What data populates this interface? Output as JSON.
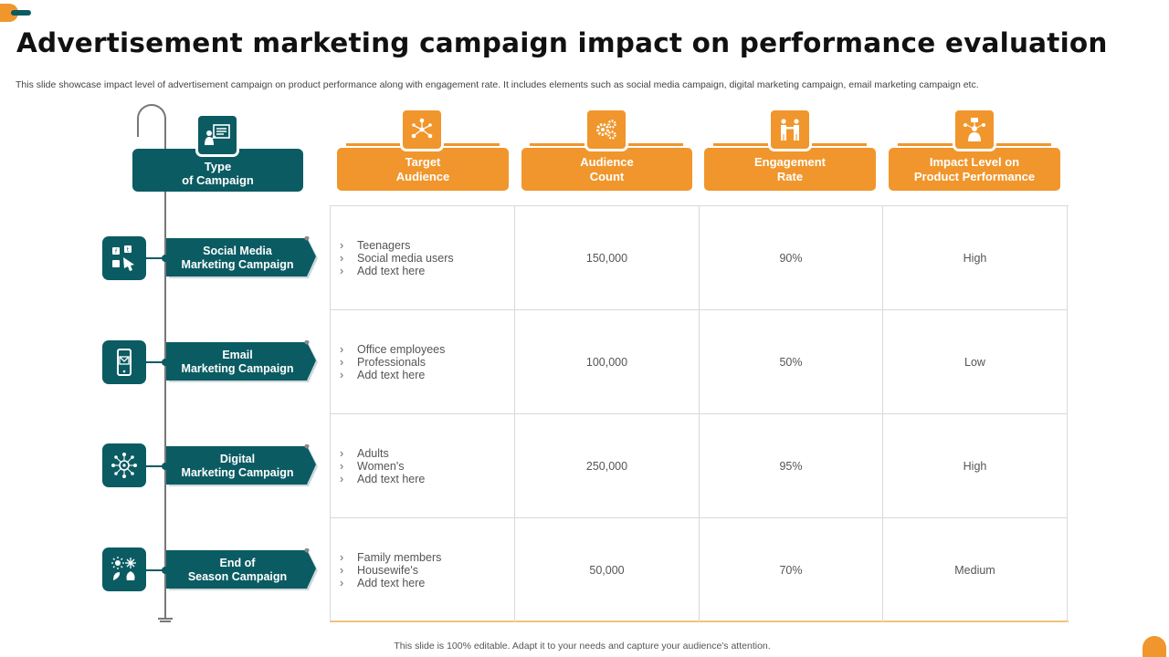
{
  "title": "Advertisement marketing campaign impact on performance evaluation",
  "subtitle": "This slide showcase impact level of advertisement campaign on product performance along with engagement rate. It includes elements such as social media campaign, digital marketing campaign, email marketing campaign etc.",
  "footer": "This slide is 100% editable. Adapt it to your needs and capture your audience's attention.",
  "colors": {
    "teal": "#0b5b63",
    "orange": "#f0962c",
    "grid": "#d9d9d9"
  },
  "type_header": {
    "line1": "Type",
    "line2": "of Campaign",
    "icon": "presentation-icon"
  },
  "headers": [
    {
      "line1": "Target",
      "line2": "Audience",
      "icon": "network-icon"
    },
    {
      "line1": "Audience",
      "line2": "Count",
      "icon": "gears-icon"
    },
    {
      "line1": "Engagement",
      "line2": "Rate",
      "icon": "handshake-icon"
    },
    {
      "line1": "Impact Level on",
      "line2": "Product Performance",
      "icon": "presenter-icon"
    }
  ],
  "rows": [
    {
      "line1": "Social Media",
      "line2": "Marketing Campaign",
      "icon": "social-icons-icon",
      "audience": [
        "Teenagers",
        "Social media users",
        "Add text here"
      ],
      "count": "150,000",
      "rate": "90%",
      "impact": "High"
    },
    {
      "line1": "Email",
      "line2": "Marketing Campaign",
      "icon": "mobile-email-icon",
      "audience": [
        "Office employees",
        "Professionals",
        "Add text here"
      ],
      "count": "100,000",
      "rate": "50%",
      "impact": "Low"
    },
    {
      "line1": "Digital",
      "line2": "Marketing Campaign",
      "icon": "digital-network-icon",
      "audience": [
        "Adults",
        "Women's",
        "Add text here"
      ],
      "count": "250,000",
      "rate": "95%",
      "impact": "High"
    },
    {
      "line1": "End of",
      "line2": "Season Campaign",
      "icon": "seasons-icon",
      "audience": [
        "Family members",
        "Housewife's",
        "Add text here"
      ],
      "count": "50,000",
      "rate": "70%",
      "impact": "Medium"
    }
  ]
}
